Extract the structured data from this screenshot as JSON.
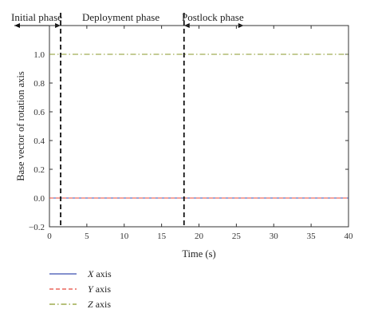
{
  "chart_data": {
    "type": "line",
    "xlabel": "Time (s)",
    "ylabel": "Base vector of rotation axis",
    "xlim": [
      0,
      40
    ],
    "ylim": [
      -0.2,
      1.2
    ],
    "xticks": [
      "0",
      "5",
      "10",
      "15",
      "20",
      "25",
      "30",
      "35",
      "40"
    ],
    "yticks": [
      "−0.2",
      "0.0",
      "0.2",
      "0.4",
      "0.6",
      "0.8",
      "1.0"
    ],
    "xtick_values": [
      0,
      5,
      10,
      15,
      20,
      25,
      30,
      35,
      40
    ],
    "ytick_values": [
      -0.2,
      0,
      0.2,
      0.4,
      0.6,
      0.8,
      1.0
    ],
    "phase_boundaries": [
      1.5,
      18
    ],
    "phases": [
      {
        "label": "Initial phase",
        "from": 0,
        "to": 1.5
      },
      {
        "label": "Deployment phase",
        "from": 1.5,
        "to": 18
      },
      {
        "label": "Postlock phase",
        "from": 18,
        "to": 26
      }
    ],
    "series": [
      {
        "name": "X axis",
        "name_italic": "X",
        "name_rest": " axis",
        "color": "#3a4fb0",
        "dash": "solid",
        "x": [
          0,
          40
        ],
        "y": [
          0,
          0
        ]
      },
      {
        "name": "Y axis",
        "name_italic": "Y",
        "name_rest": " axis",
        "color": "#e8473a",
        "dash": "dashed",
        "x": [
          0,
          40
        ],
        "y": [
          0,
          0
        ]
      },
      {
        "name": "Z axis",
        "name_italic": "Z",
        "name_rest": " axis",
        "color": "#8a9a2a",
        "dash": "dashdot",
        "x": [
          0,
          40
        ],
        "y": [
          1,
          1
        ]
      }
    ],
    "grid": false,
    "legend_position": "bottom-left"
  }
}
